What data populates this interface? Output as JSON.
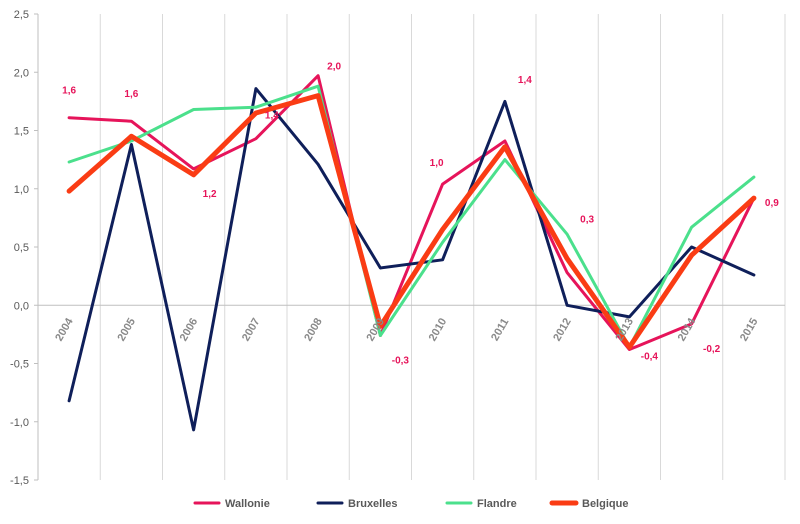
{
  "chart_data": {
    "type": "line",
    "x": [
      "2004",
      "2005",
      "2006",
      "2007",
      "2008",
      "2009",
      "2010",
      "2011",
      "2012",
      "2013",
      "2014",
      "2015"
    ],
    "ylim": [
      -1.5,
      2.5
    ],
    "yticks": [
      "-1,5",
      "-1,0",
      "-0,5",
      "0,0",
      "0,5",
      "1,0",
      "1,5",
      "2,0",
      "2,5"
    ],
    "grid": "vertical",
    "legend": "bottom",
    "series": [
      {
        "name": "Wallonie",
        "color": "#e6145a",
        "values": [
          1.61,
          1.58,
          1.17,
          1.43,
          1.97,
          -0.26,
          1.04,
          1.41,
          0.28,
          -0.38,
          -0.16,
          0.92
        ]
      },
      {
        "name": "Bruxelles",
        "color": "#0f1f5a",
        "values": [
          -0.82,
          1.38,
          -1.07,
          1.86,
          1.21,
          0.32,
          0.39,
          1.75,
          0.0,
          -0.1,
          0.5,
          0.26
        ]
      },
      {
        "name": "Flandre",
        "color": "#4be08c",
        "values": [
          1.23,
          1.41,
          1.68,
          1.7,
          1.88,
          -0.26,
          0.54,
          1.25,
          0.61,
          -0.36,
          0.67,
          1.1
        ]
      },
      {
        "name": "Belgique",
        "color": "#fa3c14",
        "values": [
          0.98,
          1.45,
          1.12,
          1.65,
          1.8,
          -0.18,
          0.65,
          1.36,
          0.4,
          -0.36,
          0.43,
          0.92
        ]
      }
    ],
    "data_labels": [
      {
        "series": "Wallonie",
        "index": 0,
        "text": "1,6"
      },
      {
        "series": "Wallonie",
        "index": 1,
        "text": "1,6"
      },
      {
        "series": "Wallonie",
        "index": 2,
        "text": "1,2"
      },
      {
        "series": "Wallonie",
        "index": 3,
        "text": "1,4"
      },
      {
        "series": "Wallonie",
        "index": 4,
        "text": "2,0"
      },
      {
        "series": "Wallonie",
        "index": 5,
        "text": "-0,3"
      },
      {
        "series": "Wallonie",
        "index": 6,
        "text": "1,0"
      },
      {
        "series": "Wallonie",
        "index": 7,
        "text": "1,4"
      },
      {
        "series": "Wallonie",
        "index": 8,
        "text": "0,3"
      },
      {
        "series": "Wallonie",
        "index": 9,
        "text": "-0,4"
      },
      {
        "series": "Wallonie",
        "index": 10,
        "text": "-0,2"
      },
      {
        "series": "Wallonie",
        "index": 11,
        "text": "0,9"
      }
    ]
  }
}
